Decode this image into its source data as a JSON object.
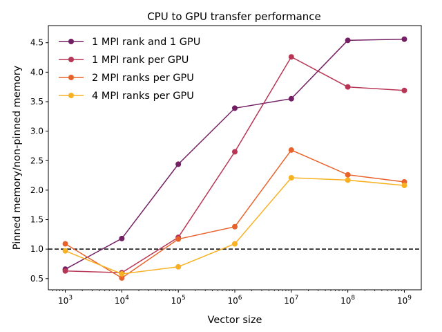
{
  "chart_data": {
    "type": "line",
    "title": "CPU to GPU transfer performance",
    "xlabel": "Vector size",
    "ylabel": "Pinned memory/non-pinned memory",
    "xscale": "log",
    "xlim_exp": [
      2.7,
      9.3
    ],
    "ylim": [
      0.31,
      4.79
    ],
    "x": [
      1000,
      10000,
      100000,
      1000000,
      10000000,
      100000000,
      1000000000
    ],
    "x_tick_exponents": [
      "3",
      "4",
      "5",
      "6",
      "7",
      "8",
      "9"
    ],
    "y_ticks": [
      "0.5",
      "1.0",
      "1.5",
      "2.0",
      "2.5",
      "3.0",
      "3.5",
      "4.0",
      "4.5"
    ],
    "y_tick_values": [
      0.5,
      1.0,
      1.5,
      2.0,
      2.5,
      3.0,
      3.5,
      4.0,
      4.5
    ],
    "reference_line": {
      "y": 1.0,
      "style": "dashed",
      "color": "#000000"
    },
    "legend_position": "upper-left",
    "series": [
      {
        "name": "1 MPI rank and 1 GPU",
        "color": "#721f63",
        "values": [
          0.66,
          1.18,
          2.44,
          3.39,
          3.55,
          4.54,
          4.56
        ]
      },
      {
        "name": "1 MPI rank per GPU",
        "color": "#b83655",
        "values": [
          0.63,
          0.6,
          1.2,
          2.65,
          4.26,
          3.75,
          3.69
        ]
      },
      {
        "name": "2 MPI ranks per GPU",
        "color": "#e8632b",
        "values": [
          1.09,
          0.51,
          1.17,
          1.38,
          2.68,
          2.26,
          2.14
        ]
      },
      {
        "name": "4 MPI ranks per GPU",
        "color": "#f8b123",
        "values": [
          0.97,
          0.58,
          0.7,
          1.09,
          2.21,
          2.17,
          2.08
        ]
      }
    ]
  }
}
